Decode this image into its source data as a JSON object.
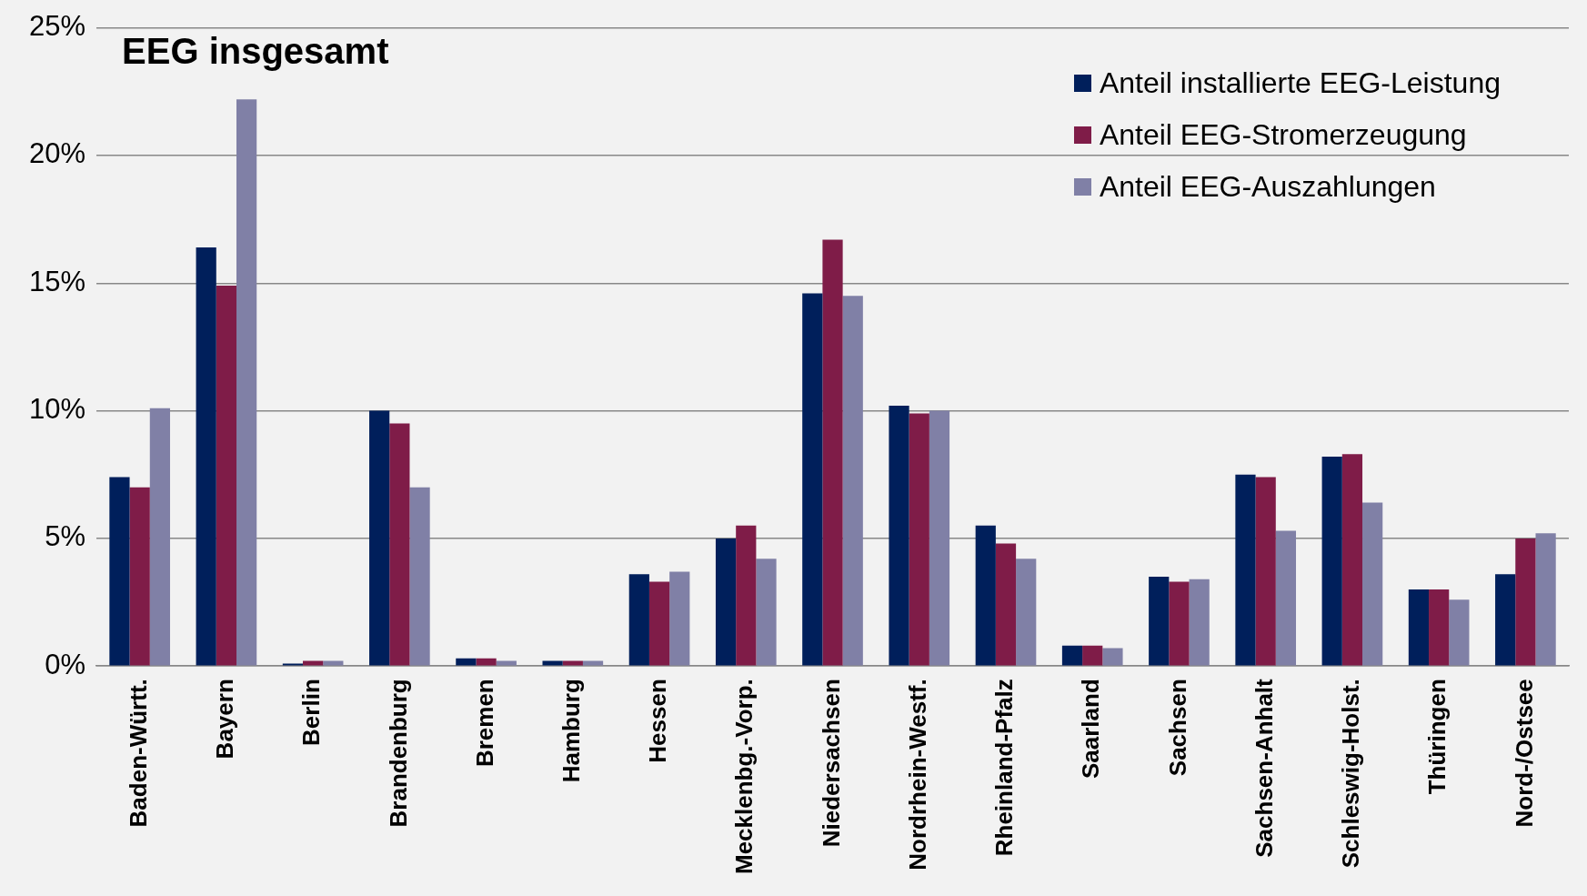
{
  "chart_data": {
    "type": "bar",
    "title": "EEG insgesamt",
    "categories": [
      "Baden-Württ.",
      "Bayern",
      "Berlin",
      "Brandenburg",
      "Bremen",
      "Hamburg",
      "Hessen",
      "Mecklenbg.-Vorp.",
      "Niedersachsen",
      "Nordrhein-Westf.",
      "Rheinland-Pfalz",
      "Saarland",
      "Sachsen",
      "Sachsen-Anhalt",
      "Schleswig-Holst.",
      "Thüringen",
      "Nord-/Ostsee"
    ],
    "series": [
      {
        "name": "Anteil installierte EEG-Leistung",
        "color": "#001f5b",
        "values": [
          7.4,
          16.4,
          0.1,
          10.0,
          0.3,
          0.2,
          3.6,
          5.0,
          14.6,
          10.2,
          5.5,
          0.8,
          3.5,
          7.5,
          8.2,
          3.0,
          3.6
        ]
      },
      {
        "name": "Anteil EEG-Stromerzeugung",
        "color": "#7f1c48",
        "values": [
          7.0,
          14.9,
          0.2,
          9.5,
          0.3,
          0.2,
          3.3,
          5.5,
          16.7,
          9.9,
          4.8,
          0.8,
          3.3,
          7.4,
          8.3,
          3.0,
          5.0
        ]
      },
      {
        "name": "Anteil EEG-Auszahlungen",
        "color": "#8080a6",
        "values": [
          10.1,
          22.2,
          0.2,
          7.0,
          0.2,
          0.2,
          3.7,
          4.2,
          14.5,
          10.0,
          4.2,
          0.7,
          3.4,
          5.3,
          6.4,
          2.6,
          5.2
        ]
      }
    ],
    "ylim": [
      0,
      25
    ],
    "yticks": [
      {
        "value": 0,
        "label": "0%"
      },
      {
        "value": 5,
        "label": "5%"
      },
      {
        "value": 10,
        "label": "10%"
      },
      {
        "value": 15,
        "label": "15%"
      },
      {
        "value": 20,
        "label": "20%"
      },
      {
        "value": 25,
        "label": "25%"
      }
    ],
    "grid": "y",
    "legend": "top right"
  }
}
